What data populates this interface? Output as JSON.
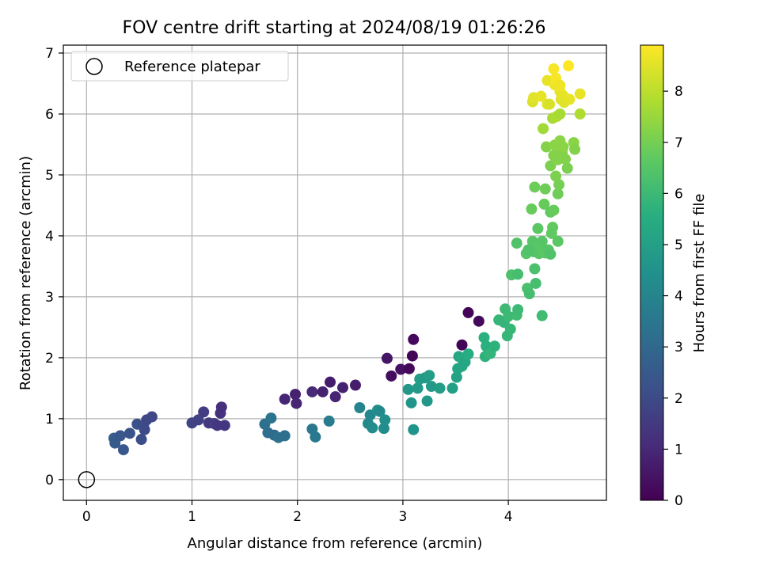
{
  "chart_data": {
    "type": "scatter",
    "title": "FOV centre drift starting at 2024/08/19 01:26:26",
    "xlabel": "Angular distance from reference (arcmin)",
    "ylabel": "Rotation from reference (arcmin)",
    "xlim": [
      -0.22,
      4.93
    ],
    "ylim": [
      -0.34,
      7.13
    ],
    "x_ticks": [
      0,
      1,
      2,
      3,
      4
    ],
    "y_ticks": [
      0,
      1,
      2,
      3,
      4,
      5,
      6,
      7
    ],
    "grid": true,
    "legend": {
      "placement": "top-left",
      "entries": [
        "Reference platepar"
      ]
    },
    "colorbar": {
      "label": "Hours from first FF file",
      "colormap": "viridis",
      "range": [
        0,
        8.9
      ],
      "ticks": [
        0,
        1,
        2,
        3,
        4,
        5,
        6,
        7,
        8
      ]
    },
    "reference_point": {
      "x": 0,
      "y": 0
    },
    "series": [
      {
        "points": [
          {
            "x": 2.85,
            "y": 1.99,
            "h": 0.5
          },
          {
            "x": 2.89,
            "y": 1.7,
            "h": 0.3
          },
          {
            "x": 2.98,
            "y": 1.81,
            "h": 0.4
          },
          {
            "x": 3.06,
            "y": 1.82,
            "h": 0.2
          },
          {
            "x": 3.09,
            "y": 2.03,
            "h": 0.1
          },
          {
            "x": 3.1,
            "y": 2.3,
            "h": 0.2
          },
          {
            "x": 3.56,
            "y": 2.21,
            "h": 0.1
          },
          {
            "x": 3.62,
            "y": 2.74,
            "h": 0.1
          },
          {
            "x": 3.72,
            "y": 2.6,
            "h": 0.2
          },
          {
            "x": 1.88,
            "y": 1.32,
            "h": 0.9
          },
          {
            "x": 1.98,
            "y": 1.4,
            "h": 0.8
          },
          {
            "x": 1.99,
            "y": 1.25,
            "h": 0.9
          },
          {
            "x": 2.14,
            "y": 1.44,
            "h": 1.0
          },
          {
            "x": 2.24,
            "y": 1.44,
            "h": 0.8
          },
          {
            "x": 2.31,
            "y": 1.6,
            "h": 0.7
          },
          {
            "x": 2.36,
            "y": 1.36,
            "h": 0.9
          },
          {
            "x": 2.43,
            "y": 1.51,
            "h": 0.8
          },
          {
            "x": 2.55,
            "y": 1.55,
            "h": 0.7
          },
          {
            "x": 1.0,
            "y": 0.93,
            "h": 1.8
          },
          {
            "x": 1.06,
            "y": 0.98,
            "h": 1.7
          },
          {
            "x": 1.11,
            "y": 1.11,
            "h": 1.6
          },
          {
            "x": 1.16,
            "y": 0.93,
            "h": 1.5
          },
          {
            "x": 1.21,
            "y": 0.92,
            "h": 1.6
          },
          {
            "x": 1.24,
            "y": 0.89,
            "h": 1.4
          },
          {
            "x": 1.27,
            "y": 1.09,
            "h": 1.3
          },
          {
            "x": 1.28,
            "y": 1.19,
            "h": 1.2
          },
          {
            "x": 1.31,
            "y": 0.89,
            "h": 1.4
          },
          {
            "x": 0.26,
            "y": 0.68,
            "h": 2.6
          },
          {
            "x": 0.27,
            "y": 0.6,
            "h": 2.5
          },
          {
            "x": 0.32,
            "y": 0.72,
            "h": 2.4
          },
          {
            "x": 0.35,
            "y": 0.49,
            "h": 2.4
          },
          {
            "x": 0.41,
            "y": 0.76,
            "h": 2.3
          },
          {
            "x": 0.48,
            "y": 0.91,
            "h": 2.2
          },
          {
            "x": 0.52,
            "y": 0.66,
            "h": 2.1
          },
          {
            "x": 0.54,
            "y": 0.89,
            "h": 2.1
          },
          {
            "x": 0.55,
            "y": 0.82,
            "h": 2.0
          },
          {
            "x": 0.57,
            "y": 0.98,
            "h": 1.9
          },
          {
            "x": 0.62,
            "y": 1.03,
            "h": 1.9
          },
          {
            "x": 1.69,
            "y": 0.91,
            "h": 3.3
          },
          {
            "x": 1.72,
            "y": 0.77,
            "h": 3.2
          },
          {
            "x": 1.75,
            "y": 1.01,
            "h": 3.4
          },
          {
            "x": 1.78,
            "y": 0.73,
            "h": 3.1
          },
          {
            "x": 1.82,
            "y": 0.69,
            "h": 3.3
          },
          {
            "x": 1.88,
            "y": 0.72,
            "h": 3.2
          },
          {
            "x": 2.14,
            "y": 0.83,
            "h": 3.5
          },
          {
            "x": 2.17,
            "y": 0.7,
            "h": 3.6
          },
          {
            "x": 2.3,
            "y": 0.96,
            "h": 3.7
          },
          {
            "x": 2.59,
            "y": 1.18,
            "h": 4.0
          },
          {
            "x": 2.67,
            "y": 0.92,
            "h": 4.2
          },
          {
            "x": 2.69,
            "y": 1.06,
            "h": 4.1
          },
          {
            "x": 2.71,
            "y": 0.85,
            "h": 4.3
          },
          {
            "x": 2.76,
            "y": 1.14,
            "h": 4.4
          },
          {
            "x": 2.78,
            "y": 1.12,
            "h": 4.2
          },
          {
            "x": 2.82,
            "y": 0.84,
            "h": 4.3
          },
          {
            "x": 2.83,
            "y": 0.98,
            "h": 4.4
          },
          {
            "x": 3.1,
            "y": 0.82,
            "h": 4.6
          },
          {
            "x": 3.05,
            "y": 1.48,
            "h": 4.7
          },
          {
            "x": 3.08,
            "y": 1.26,
            "h": 4.6
          },
          {
            "x": 3.14,
            "y": 1.5,
            "h": 4.8
          },
          {
            "x": 3.16,
            "y": 1.65,
            "h": 4.9
          },
          {
            "x": 3.21,
            "y": 1.67,
            "h": 4.8
          },
          {
            "x": 3.23,
            "y": 1.29,
            "h": 4.7
          },
          {
            "x": 3.25,
            "y": 1.71,
            "h": 4.9
          },
          {
            "x": 3.27,
            "y": 1.53,
            "h": 4.8
          },
          {
            "x": 3.35,
            "y": 1.5,
            "h": 4.9
          },
          {
            "x": 3.47,
            "y": 1.5,
            "h": 5.0
          },
          {
            "x": 3.51,
            "y": 1.68,
            "h": 5.1
          },
          {
            "x": 3.52,
            "y": 1.82,
            "h": 5.2
          },
          {
            "x": 3.53,
            "y": 2.02,
            "h": 5.3
          },
          {
            "x": 3.56,
            "y": 1.86,
            "h": 5.2
          },
          {
            "x": 3.57,
            "y": 1.98,
            "h": 5.4
          },
          {
            "x": 3.59,
            "y": 1.93,
            "h": 5.3
          },
          {
            "x": 3.62,
            "y": 2.06,
            "h": 5.5
          },
          {
            "x": 3.77,
            "y": 2.33,
            "h": 5.6
          },
          {
            "x": 3.78,
            "y": 2.02,
            "h": 5.7
          },
          {
            "x": 3.79,
            "y": 2.19,
            "h": 5.6
          },
          {
            "x": 3.83,
            "y": 2.07,
            "h": 5.8
          },
          {
            "x": 3.87,
            "y": 2.19,
            "h": 5.7
          },
          {
            "x": 3.91,
            "y": 2.62,
            "h": 5.9
          },
          {
            "x": 3.96,
            "y": 2.58,
            "h": 5.8
          },
          {
            "x": 3.97,
            "y": 2.8,
            "h": 6.0
          },
          {
            "x": 3.99,
            "y": 2.36,
            "h": 5.9
          },
          {
            "x": 4.0,
            "y": 2.68,
            "h": 6.0
          },
          {
            "x": 4.02,
            "y": 2.47,
            "h": 5.9
          },
          {
            "x": 4.08,
            "y": 2.7,
            "h": 6.1
          },
          {
            "x": 4.09,
            "y": 2.79,
            "h": 6.0
          },
          {
            "x": 4.32,
            "y": 2.69,
            "h": 6.1
          },
          {
            "x": 4.03,
            "y": 3.36,
            "h": 6.3
          },
          {
            "x": 4.09,
            "y": 3.37,
            "h": 6.2
          },
          {
            "x": 4.08,
            "y": 3.88,
            "h": 6.4
          },
          {
            "x": 4.18,
            "y": 3.14,
            "h": 6.3
          },
          {
            "x": 4.2,
            "y": 3.05,
            "h": 6.2
          },
          {
            "x": 4.17,
            "y": 3.71,
            "h": 6.5
          },
          {
            "x": 4.19,
            "y": 3.77,
            "h": 6.4
          },
          {
            "x": 4.23,
            "y": 3.91,
            "h": 6.5
          },
          {
            "x": 4.24,
            "y": 3.74,
            "h": 6.4
          },
          {
            "x": 4.25,
            "y": 3.46,
            "h": 6.3
          },
          {
            "x": 4.26,
            "y": 3.22,
            "h": 6.2
          },
          {
            "x": 4.28,
            "y": 4.12,
            "h": 6.6
          },
          {
            "x": 4.29,
            "y": 3.71,
            "h": 6.5
          },
          {
            "x": 4.3,
            "y": 3.84,
            "h": 6.6
          },
          {
            "x": 4.32,
            "y": 3.91,
            "h": 6.5
          },
          {
            "x": 4.35,
            "y": 3.72,
            "h": 6.6
          },
          {
            "x": 4.38,
            "y": 3.77,
            "h": 6.5
          },
          {
            "x": 4.4,
            "y": 3.7,
            "h": 6.4
          },
          {
            "x": 4.41,
            "y": 4.04,
            "h": 6.7
          },
          {
            "x": 4.42,
            "y": 4.14,
            "h": 6.7
          },
          {
            "x": 4.47,
            "y": 3.91,
            "h": 6.6
          },
          {
            "x": 4.22,
            "y": 4.44,
            "h": 6.8
          },
          {
            "x": 4.25,
            "y": 4.8,
            "h": 6.9
          },
          {
            "x": 4.34,
            "y": 4.52,
            "h": 6.8
          },
          {
            "x": 4.35,
            "y": 4.77,
            "h": 6.9
          },
          {
            "x": 4.4,
            "y": 4.39,
            "h": 6.7
          },
          {
            "x": 4.43,
            "y": 4.42,
            "h": 6.8
          },
          {
            "x": 4.47,
            "y": 4.69,
            "h": 6.9
          },
          {
            "x": 4.48,
            "y": 4.84,
            "h": 7.0
          },
          {
            "x": 4.36,
            "y": 5.46,
            "h": 7.2
          },
          {
            "x": 4.4,
            "y": 5.15,
            "h": 7.1
          },
          {
            "x": 4.43,
            "y": 5.32,
            "h": 7.2
          },
          {
            "x": 4.44,
            "y": 5.49,
            "h": 7.3
          },
          {
            "x": 4.45,
            "y": 4.98,
            "h": 7.1
          },
          {
            "x": 4.47,
            "y": 5.25,
            "h": 7.2
          },
          {
            "x": 4.49,
            "y": 5.56,
            "h": 7.3
          },
          {
            "x": 4.51,
            "y": 5.37,
            "h": 7.2
          },
          {
            "x": 4.52,
            "y": 5.46,
            "h": 7.3
          },
          {
            "x": 4.54,
            "y": 5.26,
            "h": 7.2
          },
          {
            "x": 4.56,
            "y": 5.11,
            "h": 7.1
          },
          {
            "x": 4.62,
            "y": 5.53,
            "h": 7.3
          },
          {
            "x": 4.63,
            "y": 5.42,
            "h": 7.2
          },
          {
            "x": 4.33,
            "y": 5.76,
            "h": 7.6
          },
          {
            "x": 4.42,
            "y": 5.93,
            "h": 7.7
          },
          {
            "x": 4.46,
            "y": 5.96,
            "h": 7.8
          },
          {
            "x": 4.49,
            "y": 6.0,
            "h": 7.7
          },
          {
            "x": 4.68,
            "y": 6.0,
            "h": 7.8
          },
          {
            "x": 4.23,
            "y": 6.2,
            "h": 8.4
          },
          {
            "x": 4.24,
            "y": 6.27,
            "h": 8.5
          },
          {
            "x": 4.31,
            "y": 6.29,
            "h": 8.6
          },
          {
            "x": 4.37,
            "y": 6.16,
            "h": 8.5
          },
          {
            "x": 4.39,
            "y": 6.16,
            "h": 8.4
          },
          {
            "x": 4.37,
            "y": 6.55,
            "h": 8.6
          },
          {
            "x": 4.43,
            "y": 6.74,
            "h": 8.8
          },
          {
            "x": 4.44,
            "y": 6.48,
            "h": 8.7
          },
          {
            "x": 4.45,
            "y": 6.59,
            "h": 8.8
          },
          {
            "x": 4.49,
            "y": 6.37,
            "h": 8.6
          },
          {
            "x": 4.49,
            "y": 6.47,
            "h": 8.7
          },
          {
            "x": 4.5,
            "y": 6.24,
            "h": 8.5
          },
          {
            "x": 4.52,
            "y": 6.3,
            "h": 8.6
          },
          {
            "x": 4.53,
            "y": 6.19,
            "h": 8.5
          },
          {
            "x": 4.57,
            "y": 6.79,
            "h": 8.9
          },
          {
            "x": 4.58,
            "y": 6.24,
            "h": 8.6
          },
          {
            "x": 4.68,
            "y": 6.33,
            "h": 8.6
          }
        ]
      }
    ]
  }
}
